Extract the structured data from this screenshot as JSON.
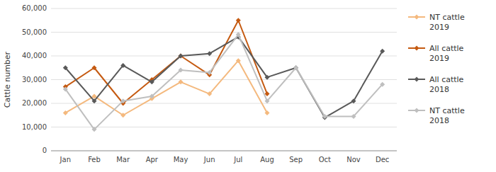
{
  "chart_data": {
    "type": "line",
    "categories": [
      "Jan",
      "Feb",
      "Mar",
      "Apr",
      "May",
      "Jun",
      "Jul",
      "Aug",
      "Sep",
      "Oct",
      "Nov",
      "Dec"
    ],
    "series": [
      {
        "name": "NT cattle\n2019",
        "color": "#f4b97e",
        "marker": "diamond",
        "values": [
          16000,
          23000,
          15000,
          22000,
          29000,
          24000,
          38000,
          16000,
          null,
          null,
          null,
          null
        ]
      },
      {
        "name": "All cattle\n2019",
        "color": "#c55a11",
        "marker": "diamond",
        "values": [
          27000,
          35000,
          20000,
          30000,
          40000,
          32000,
          55000,
          24000,
          null,
          null,
          null,
          null
        ]
      },
      {
        "name": "All cattle\n2018",
        "color": "#595959",
        "marker": "diamond",
        "values": [
          35000,
          21000,
          36000,
          29000,
          40000,
          41000,
          48000,
          31000,
          35000,
          14000,
          21000,
          42000
        ]
      },
      {
        "name": "NT cattle\n2018",
        "color": "#bfbfbf",
        "marker": "diamond",
        "values": [
          26000,
          9000,
          21000,
          23000,
          34000,
          33000,
          49000,
          21000,
          35000,
          14500,
          14500,
          28000
        ]
      }
    ],
    "ylabel": "Cattle number",
    "ylim": [
      0,
      60000
    ],
    "yticks": [
      0,
      {
        "value": 10000,
        "label": "10,000"
      },
      {
        "value": 20000,
        "label": "20,000"
      },
      {
        "value": 30000,
        "label": "30,000"
      },
      {
        "value": 40000,
        "label": "40,000"
      },
      {
        "value": 50000,
        "label": "50,000"
      },
      {
        "value": 60000,
        "label": "60,000"
      }
    ],
    "grid": true,
    "legend": "right"
  }
}
